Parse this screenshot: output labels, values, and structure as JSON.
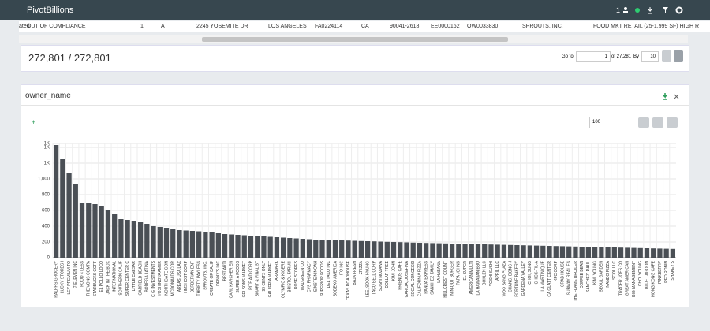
{
  "header": {
    "title": "PivotBillions",
    "user_count": "1"
  },
  "table_row": [
    "ated",
    "OUT OF COMPLIANCE",
    "1",
    "A",
    "2245 YOSEMITE DR",
    "LOS ANGELES",
    "FA0224114",
    "CA",
    "90041-2618",
    "EE0000162",
    "OW0033830",
    "SPROUTS, INC.",
    "FOOD MKT RETAIL (25-1,999 SF) HIGH R"
  ],
  "count": "272,801 / 272,801",
  "pager": {
    "goto": "Go to",
    "page": "1",
    "of": "of 27,281",
    "by": "By",
    "size": "10"
  },
  "panel": {
    "title": "owner_name",
    "plus": "+",
    "input": "100"
  },
  "chart_data": {
    "type": "bar",
    "color": "#4a4f55",
    "grid": true,
    "ylim": [
      0,
      1450
    ],
    "yticks": [
      0,
      200,
      400,
      600,
      800,
      {
        "value": 1000,
        "label": "1,000"
      },
      {
        "value": 1200,
        "label": "1K"
      },
      {
        "value": 1400,
        "label": "1K"
      },
      {
        "value": 1450,
        "label": "1K"
      }
    ],
    "categories": [
      "RALPHS GROCERY",
      "LUCKY STORES I",
      "LEY PREMIUM TO",
      "7-ELEVEN INC",
      "FOOD 4 LESS",
      "THE VONS COMPA",
      "STARBUCKS COFF",
      "EL POLLO LOCO",
      "JACK IN THE BOX",
      "INTERNATIONAL",
      "SOUTHERN CALIF",
      "SUPER CENTER C",
      "LITTLE CAESAR",
      "GARFIELD BEACH",
      "BODEGA LATINA",
      "C G INVESTMENTS",
      "YOSHINOYA AMER",
      "NORTHGATE GON",
      "MCDONALDS COR",
      "AREAS USA LAX",
      "HMSHOST CORP",
      "BERBERIAN ENT",
      "THRIFTY PAYLESS",
      "SPROUTS, INC.",
      "CREATE OF CALIF",
      "DENNY'S INC",
      "BEST ARTI",
      "CARL KARCHER EN",
      "SUPER A FOODS",
      "GELSONS MARKET",
      "RITE AID CORP",
      "SMART & FINAL ST",
      "99 CENTS ONLY",
      "GALLERIA MARKET",
      "ARAMARK",
      "OLYMPIC & KIGERE",
      "BRISTOL FARMS",
      "ROSE STORES",
      "WALGREEN CO",
      "CVS PHARMACY",
      "EINSTEIN NOAH",
      "SUPERIOR FOODS",
      "DEL TACO INC",
      "SODEXO AMERICA",
      "ITO INC",
      "TEXAS ROADHOUSE",
      "BAJA FRESH",
      "ZPIZZA",
      "LEE, SOOK HYUNG",
      "TACO BELL CORP",
      "SUSHI NOZAWA",
      "DOLLAR TREE",
      "KIM, JOHN",
      "FRIENDS CAFE",
      "GARCIA, JOSEFINA",
      "SOCIAL CONCESSI",
      "CALIFORNIA PIZZA",
      "PANDA EXPRESS",
      "SANCHEZ FAMILY",
      "LA HABANA",
      "HILLCREST COUNT",
      "IN-N-OUT BURGER",
      "PAPA JOHNS",
      "EL SUPER",
      "AMERICAN MULTI",
      "LA HAWAIIAN BBQ",
      "BOKLEN LLC",
      "YOSHI SUSHI",
      "APRIL LLC",
      "WOO SANG PLAZA",
      "CHANG, DONG J",
      "FORTUNE BAKERY",
      "GARDENA VALLEY",
      "CHOI, SUNG",
      "CHICK-FIL-A",
      "LA MARTINIQUE",
      "CA GLATT CENTER",
      "KFC CORP",
      "CRAB HOUSE",
      "SUBWAY REAL ES",
      "THE FLAME BROILER",
      "COFFEE BEAN",
      "SANCHEZ, RAUL",
      "KIM, YOUNG",
      "SEOUL GARDEN",
      "NANDO PIZZA",
      "SCOL LLC",
      "TRADER JOES CO",
      "GREAT AMERICAN",
      "BIG MANAGEMENT",
      "CHO, YOUNG",
      "BLUE LAGOON",
      "HONG KONG CAFE",
      "PINKBERRY",
      "RED ROBIN",
      "SHAKEY'S"
    ],
    "values": [
      1430,
      1250,
      1070,
      930,
      700,
      690,
      680,
      660,
      600,
      560,
      490,
      480,
      470,
      450,
      430,
      400,
      390,
      380,
      370,
      350,
      345,
      340,
      335,
      330,
      320,
      310,
      300,
      295,
      290,
      285,
      280,
      275,
      270,
      265,
      260,
      255,
      250,
      245,
      240,
      235,
      230,
      228,
      225,
      222,
      220,
      218,
      215,
      212,
      210,
      208,
      205,
      202,
      200,
      198,
      195,
      192,
      190,
      188,
      186,
      184,
      182,
      180,
      178,
      176,
      174,
      172,
      170,
      168,
      166,
      164,
      162,
      160,
      158,
      156,
      154,
      152,
      150,
      148,
      146,
      144,
      142,
      140,
      138,
      136,
      134,
      132,
      130,
      128,
      126,
      124,
      122,
      120,
      118,
      116,
      114,
      112
    ]
  }
}
